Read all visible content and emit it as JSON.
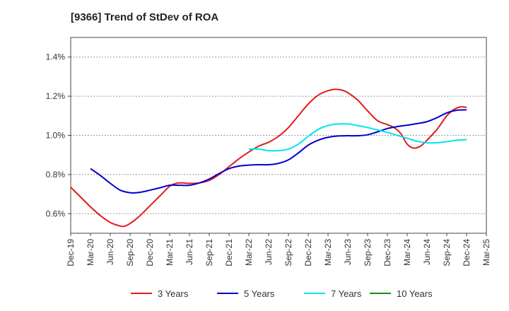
{
  "chart_data": {
    "type": "line",
    "title": "[9366]  Trend of StDev of ROA",
    "x_categories": [
      "Dec-19",
      "Mar-20",
      "Jun-20",
      "Sep-20",
      "Dec-20",
      "Mar-21",
      "Jun-21",
      "Sep-21",
      "Dec-21",
      "Mar-22",
      "Jun-22",
      "Sep-22",
      "Dec-22",
      "Mar-23",
      "Jun-23",
      "Sep-23",
      "Dec-23",
      "Mar-24",
      "Jun-24",
      "Sep-24",
      "Dec-24",
      "Mar-25"
    ],
    "ylim": [
      0.5,
      1.5
    ],
    "y_ticks": [
      0.6,
      0.8,
      1.0,
      1.2,
      1.4
    ],
    "y_tick_labels": [
      "0.6%",
      "0.8%",
      "1.0%",
      "1.2%",
      "1.4%"
    ],
    "grid": "horizontal-dashed",
    "legend_position": "bottom",
    "series": [
      {
        "name": "3 Years",
        "color": "#e41a1c",
        "points": [
          [
            0,
            0.735
          ],
          [
            0.5,
            0.685
          ],
          [
            1,
            0.635
          ],
          [
            1.5,
            0.59
          ],
          [
            2,
            0.555
          ],
          [
            2.33,
            0.542
          ],
          [
            2.67,
            0.535
          ],
          [
            3,
            0.55
          ],
          [
            3.5,
            0.59
          ],
          [
            4,
            0.64
          ],
          [
            4.5,
            0.69
          ],
          [
            5,
            0.74
          ],
          [
            5.33,
            0.755
          ],
          [
            5.67,
            0.757
          ],
          [
            6,
            0.755
          ],
          [
            6.5,
            0.757
          ],
          [
            7,
            0.77
          ],
          [
            7.5,
            0.8
          ],
          [
            8,
            0.84
          ],
          [
            8.5,
            0.88
          ],
          [
            9,
            0.915
          ],
          [
            9.5,
            0.945
          ],
          [
            10,
            0.965
          ],
          [
            10.5,
            0.995
          ],
          [
            11,
            1.04
          ],
          [
            11.5,
            1.1
          ],
          [
            12,
            1.16
          ],
          [
            12.5,
            1.205
          ],
          [
            13,
            1.228
          ],
          [
            13.33,
            1.235
          ],
          [
            13.67,
            1.232
          ],
          [
            14,
            1.218
          ],
          [
            14.5,
            1.18
          ],
          [
            15,
            1.125
          ],
          [
            15.5,
            1.075
          ],
          [
            16,
            1.055
          ],
          [
            16.33,
            1.04
          ],
          [
            16.67,
            1.01
          ],
          [
            17,
            0.955
          ],
          [
            17.33,
            0.935
          ],
          [
            17.67,
            0.945
          ],
          [
            18,
            0.975
          ],
          [
            18.5,
            1.03
          ],
          [
            19,
            1.1
          ],
          [
            19.33,
            1.13
          ],
          [
            19.67,
            1.145
          ],
          [
            20,
            1.143
          ]
        ]
      },
      {
        "name": "5 Years",
        "color": "#0000cc",
        "points": [
          [
            1,
            0.83
          ],
          [
            1.5,
            0.795
          ],
          [
            2,
            0.755
          ],
          [
            2.5,
            0.72
          ],
          [
            3,
            0.707
          ],
          [
            3.33,
            0.707
          ],
          [
            3.67,
            0.712
          ],
          [
            4,
            0.72
          ],
          [
            4.5,
            0.732
          ],
          [
            5,
            0.745
          ],
          [
            5.5,
            0.745
          ],
          [
            6,
            0.745
          ],
          [
            6.5,
            0.757
          ],
          [
            7,
            0.777
          ],
          [
            7.5,
            0.805
          ],
          [
            8,
            0.83
          ],
          [
            8.5,
            0.843
          ],
          [
            9,
            0.848
          ],
          [
            9.5,
            0.85
          ],
          [
            10,
            0.85
          ],
          [
            10.5,
            0.857
          ],
          [
            11,
            0.875
          ],
          [
            11.5,
            0.91
          ],
          [
            12,
            0.95
          ],
          [
            12.5,
            0.975
          ],
          [
            13,
            0.99
          ],
          [
            13.5,
            0.997
          ],
          [
            14,
            0.998
          ],
          [
            14.5,
            0.998
          ],
          [
            15,
            1.003
          ],
          [
            15.5,
            1.018
          ],
          [
            16,
            1.035
          ],
          [
            16.5,
            1.045
          ],
          [
            17,
            1.052
          ],
          [
            17.5,
            1.06
          ],
          [
            18,
            1.07
          ],
          [
            18.5,
            1.09
          ],
          [
            19,
            1.115
          ],
          [
            19.5,
            1.128
          ],
          [
            20,
            1.13
          ]
        ]
      },
      {
        "name": "7 Years",
        "color": "#00e5ee",
        "points": [
          [
            9,
            0.93
          ],
          [
            9.5,
            0.93
          ],
          [
            10,
            0.922
          ],
          [
            10.5,
            0.922
          ],
          [
            11,
            0.93
          ],
          [
            11.5,
            0.955
          ],
          [
            12,
            0.995
          ],
          [
            12.5,
            1.03
          ],
          [
            13,
            1.05
          ],
          [
            13.5,
            1.058
          ],
          [
            14,
            1.058
          ],
          [
            14.5,
            1.05
          ],
          [
            15,
            1.04
          ],
          [
            15.5,
            1.028
          ],
          [
            16,
            1.015
          ],
          [
            16.5,
            1.0
          ],
          [
            17,
            0.985
          ],
          [
            17.5,
            0.97
          ],
          [
            18,
            0.962
          ],
          [
            18.5,
            0.962
          ],
          [
            19,
            0.968
          ],
          [
            19.5,
            0.975
          ],
          [
            20,
            0.978
          ]
        ]
      },
      {
        "name": "10 Years",
        "color": "#1a8c1a",
        "points": []
      }
    ]
  }
}
